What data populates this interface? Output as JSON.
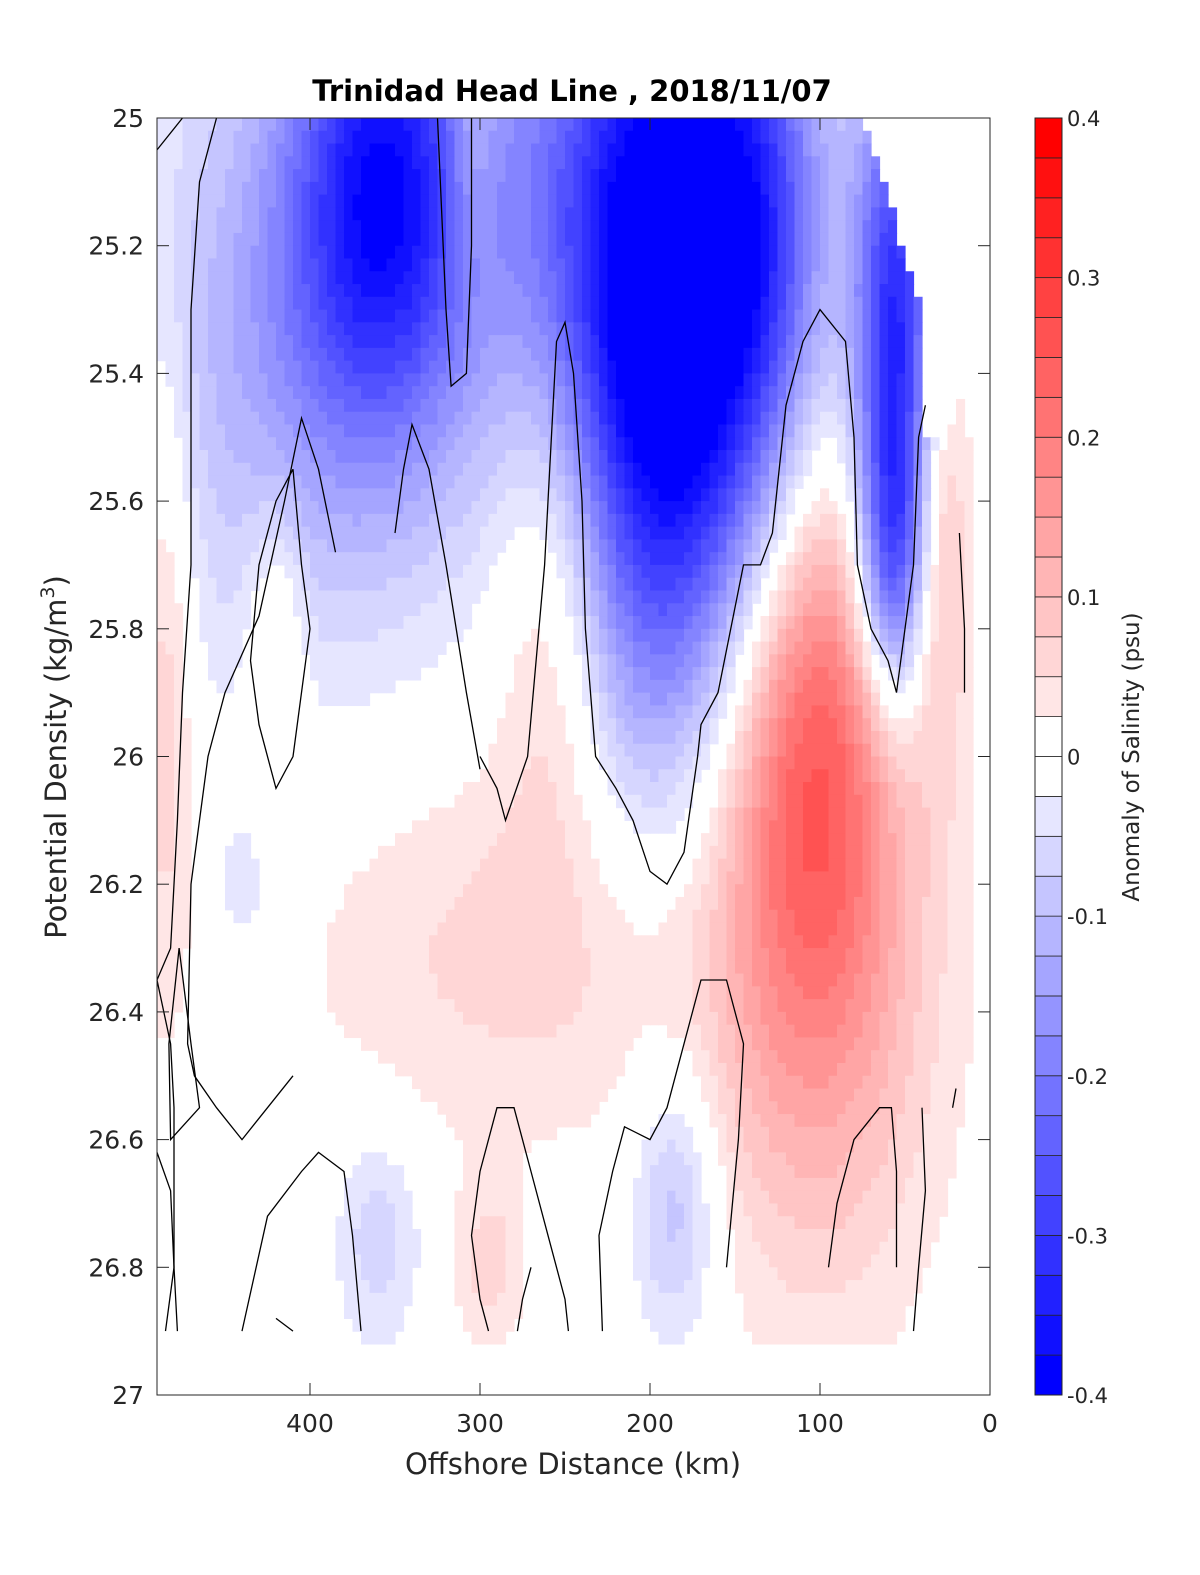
{
  "chart_data": {
    "type": "heatmap",
    "title": "Trinidad Head Line , 2018/11/07",
    "xlabel": "Offshore Distance (km)",
    "ylabel_main": "Potential Density (kg/m",
    "ylabel_sup": "3",
    "ylabel_close": ")",
    "colorbar_label": "Anomaly of Salinity (psu)",
    "xlim": [
      490,
      0
    ],
    "ylim": [
      25,
      27
    ],
    "x_ticks": [
      {
        "value": 400,
        "label": "400"
      },
      {
        "value": 300,
        "label": "300"
      },
      {
        "value": 200,
        "label": "200"
      },
      {
        "value": 100,
        "label": "100"
      },
      {
        "value": 0,
        "label": "0"
      }
    ],
    "y_ticks": [
      {
        "value": 25,
        "label": "25"
      },
      {
        "value": 25.2,
        "label": "25.2"
      },
      {
        "value": 25.4,
        "label": "25.4"
      },
      {
        "value": 25.6,
        "label": "25.6"
      },
      {
        "value": 25.8,
        "label": "25.8"
      },
      {
        "value": 26,
        "label": "26"
      },
      {
        "value": 26.2,
        "label": "26.2"
      },
      {
        "value": 26.4,
        "label": "26.4"
      },
      {
        "value": 26.6,
        "label": "26.6"
      },
      {
        "value": 26.8,
        "label": "26.8"
      },
      {
        "value": 27,
        "label": "27"
      }
    ],
    "clim": [
      -0.4,
      0.4
    ],
    "colorbar_levels": 32,
    "colorbar_ticks": [
      {
        "value": 0.4,
        "label": "0.4"
      },
      {
        "value": 0.3,
        "label": "0.3"
      },
      {
        "value": 0.2,
        "label": "0.2"
      },
      {
        "value": 0.1,
        "label": "0.1"
      },
      {
        "value": 0,
        "label": "0"
      },
      {
        "value": -0.1,
        "label": "-0.1"
      },
      {
        "value": -0.2,
        "label": "-0.2"
      },
      {
        "value": -0.3,
        "label": "-0.3"
      },
      {
        "value": -0.4,
        "label": "-0.4"
      }
    ],
    "colors": {
      "negative": "#0000ff",
      "positive": "#ff0000",
      "zero": "#ffffff",
      "contour": "#000000"
    },
    "data_extent": {
      "top": [
        [
          490,
          25
        ],
        [
          470,
          25
        ],
        [
          460,
          25
        ],
        [
          440,
          25
        ],
        [
          400,
          25
        ],
        [
          350,
          25
        ],
        [
          300,
          25
        ],
        [
          250,
          25
        ],
        [
          200,
          25
        ],
        [
          150,
          25
        ],
        [
          100,
          25
        ],
        [
          80,
          25
        ],
        [
          75,
          25
        ],
        [
          40,
          25.3
        ],
        [
          40,
          25.5
        ],
        [
          30,
          25.5
        ],
        [
          25,
          25.5
        ],
        [
          20,
          25.45
        ],
        [
          10,
          25.4
        ]
      ],
      "bottom_y": 26.9
    },
    "anomalies": [
      {
        "x": 355,
        "y": 25.1,
        "sx": 40,
        "sy": 0.28,
        "value": -0.32
      },
      {
        "x": 410,
        "y": 25.35,
        "sx": 75,
        "sy": 0.35,
        "value": -0.12
      },
      {
        "x": 250,
        "y": 25.15,
        "sx": 35,
        "sy": 0.35,
        "value": -0.12
      },
      {
        "x": 180,
        "y": 25.15,
        "sx": 45,
        "sy": 0.35,
        "value": -0.36
      },
      {
        "x": 190,
        "y": 25.6,
        "sx": 45,
        "sy": 0.35,
        "value": -0.22
      },
      {
        "x": 130,
        "y": 25.2,
        "sx": 25,
        "sy": 0.3,
        "value": -0.12
      },
      {
        "x": 55,
        "y": 25.35,
        "sx": 18,
        "sy": 0.3,
        "value": -0.34
      },
      {
        "x": 58,
        "y": 25.7,
        "sx": 14,
        "sy": 0.15,
        "value": -0.18
      },
      {
        "x": 105,
        "y": 25.95,
        "sx": 38,
        "sy": 0.33,
        "value": 0.22
      },
      {
        "x": 100,
        "y": 26.4,
        "sx": 50,
        "sy": 0.35,
        "value": 0.1
      },
      {
        "x": 255,
        "y": 25.7,
        "sx": 25,
        "sy": 0.3,
        "value": 0.12
      },
      {
        "x": 280,
        "y": 26.3,
        "sx": 90,
        "sy": 0.22,
        "value": 0.06
      },
      {
        "x": 305,
        "y": 25.05,
        "sx": 10,
        "sy": 0.15,
        "value": 0.07
      },
      {
        "x": 30,
        "y": 25.6,
        "sx": 12,
        "sy": 0.25,
        "value": 0.12
      },
      {
        "x": 485,
        "y": 25.8,
        "sx": 12,
        "sy": 0.4,
        "value": 0.08
      },
      {
        "x": 420,
        "y": 25.8,
        "sx": 12,
        "sy": 0.15,
        "value": 0.07
      },
      {
        "x": 185,
        "y": 26.7,
        "sx": 18,
        "sy": 0.15,
        "value": -0.1
      },
      {
        "x": 360,
        "y": 26.75,
        "sx": 18,
        "sy": 0.12,
        "value": -0.07
      },
      {
        "x": 295,
        "y": 26.8,
        "sx": 15,
        "sy": 0.1,
        "value": 0.06
      },
      {
        "x": 440,
        "y": 26.2,
        "sx": 10,
        "sy": 0.07,
        "value": -0.05
      }
    ],
    "contours": [
      [
        [
          490,
          25.05
        ],
        [
          475,
          25.0
        ]
      ],
      [
        [
          455,
          25.0
        ],
        [
          465,
          25.1
        ],
        [
          470,
          25.3
        ],
        [
          470,
          25.5
        ],
        [
          470,
          25.7
        ],
        [
          475,
          25.9
        ],
        [
          478,
          26.1
        ],
        [
          482,
          26.3
        ],
        [
          490,
          26.35
        ]
      ],
      [
        [
          490,
          26.35
        ],
        [
          482,
          26.45
        ],
        [
          480,
          26.55
        ],
        [
          480,
          26.8
        ],
        [
          485,
          26.9
        ]
      ],
      [
        [
          477,
          26.3
        ],
        [
          470,
          26.45
        ],
        [
          465,
          26.55
        ],
        [
          482,
          26.6
        ],
        [
          483,
          26.45
        ],
        [
          477,
          26.3
        ]
      ],
      [
        [
          410,
          25.55
        ],
        [
          420,
          25.6
        ],
        [
          430,
          25.7
        ],
        [
          435,
          25.85
        ],
        [
          430,
          25.95
        ],
        [
          420,
          26.05
        ],
        [
          410,
          26.0
        ],
        [
          405,
          25.9
        ],
        [
          400,
          25.8
        ],
        [
          405,
          25.7
        ],
        [
          410,
          25.55
        ]
      ],
      [
        [
          490,
          26.62
        ],
        [
          482,
          26.68
        ],
        [
          480,
          26.8
        ],
        [
          478,
          26.9
        ]
      ],
      [
        [
          385,
          25.68
        ],
        [
          395,
          25.55
        ],
        [
          405,
          25.47
        ],
        [
          415,
          25.6
        ],
        [
          430,
          25.78
        ],
        [
          450,
          25.9
        ],
        [
          460,
          26.0
        ],
        [
          470,
          26.2
        ],
        [
          472,
          26.45
        ],
        [
          468,
          26.5
        ],
        [
          455,
          26.55
        ],
        [
          440,
          26.6
        ],
        [
          425,
          26.55
        ],
        [
          410,
          26.5
        ]
      ],
      [
        [
          370,
          26.9
        ],
        [
          375,
          26.75
        ],
        [
          380,
          26.65
        ],
        [
          395,
          26.62
        ],
        [
          405,
          26.65
        ],
        [
          425,
          26.72
        ],
        [
          440,
          26.9
        ]
      ],
      [
        [
          420,
          26.88
        ],
        [
          410,
          26.9
        ]
      ],
      [
        [
          325,
          25.0
        ],
        [
          320,
          25.3
        ],
        [
          317,
          25.42
        ],
        [
          308,
          25.4
        ],
        [
          305,
          25.2
        ],
        [
          305,
          25.0
        ]
      ],
      [
        [
          300,
          26.0
        ],
        [
          290,
          26.05
        ],
        [
          285,
          26.1
        ],
        [
          272,
          26.0
        ],
        [
          262,
          25.7
        ],
        [
          258,
          25.5
        ],
        [
          255,
          25.35
        ],
        [
          250,
          25.32
        ],
        [
          245,
          25.4
        ],
        [
          240,
          25.6
        ],
        [
          238,
          25.8
        ],
        [
          232,
          26.0
        ],
        [
          220,
          26.05
        ],
        [
          210,
          26.1
        ],
        [
          200,
          26.18
        ],
        [
          190,
          26.2
        ],
        [
          180,
          26.15
        ],
        [
          172,
          26.0
        ],
        [
          170,
          25.95
        ],
        [
          160,
          25.9
        ],
        [
          145,
          25.7
        ],
        [
          135,
          25.7
        ],
        [
          128,
          25.65
        ],
        [
          120,
          25.45
        ],
        [
          110,
          25.35
        ],
        [
          100,
          25.3
        ],
        [
          85,
          25.35
        ],
        [
          80,
          25.5
        ],
        [
          78,
          25.7
        ],
        [
          70,
          25.8
        ],
        [
          60,
          25.85
        ],
        [
          55,
          25.9
        ],
        [
          45,
          25.7
        ],
        [
          42,
          25.5
        ],
        [
          38,
          25.45
        ]
      ],
      [
        [
          18,
          25.65
        ],
        [
          15,
          25.8
        ],
        [
          15,
          25.9
        ]
      ],
      [
        [
          22,
          26.55
        ],
        [
          20,
          26.52
        ]
      ],
      [
        [
          40,
          26.55
        ],
        [
          38,
          26.68
        ],
        [
          42,
          26.8
        ],
        [
          45,
          26.9
        ]
      ],
      [
        [
          55,
          26.8
        ],
        [
          55,
          26.65
        ],
        [
          58,
          26.55
        ],
        [
          65,
          26.55
        ],
        [
          80,
          26.6
        ],
        [
          90,
          26.7
        ],
        [
          95,
          26.8
        ]
      ],
      [
        [
          155,
          26.8
        ],
        [
          148,
          26.6
        ],
        [
          145,
          26.45
        ],
        [
          155,
          26.35
        ],
        [
          170,
          26.35
        ],
        [
          180,
          26.45
        ],
        [
          190,
          26.55
        ],
        [
          200,
          26.6
        ],
        [
          215,
          26.58
        ],
        [
          222,
          26.65
        ],
        [
          230,
          26.75
        ],
        [
          228,
          26.9
        ]
      ],
      [
        [
          248,
          26.9
        ],
        [
          250,
          26.85
        ],
        [
          260,
          26.75
        ],
        [
          270,
          26.65
        ],
        [
          280,
          26.55
        ],
        [
          290,
          26.55
        ],
        [
          300,
          26.65
        ],
        [
          305,
          26.75
        ],
        [
          300,
          26.85
        ],
        [
          295,
          26.9
        ]
      ],
      [
        [
          270,
          26.8
        ],
        [
          275,
          26.85
        ],
        [
          278,
          26.9
        ]
      ],
      [
        [
          300,
          26.02
        ],
        [
          308,
          25.9
        ],
        [
          320,
          25.7
        ],
        [
          330,
          25.55
        ],
        [
          340,
          25.48
        ],
        [
          345,
          25.55
        ],
        [
          350,
          25.65
        ]
      ]
    ]
  }
}
